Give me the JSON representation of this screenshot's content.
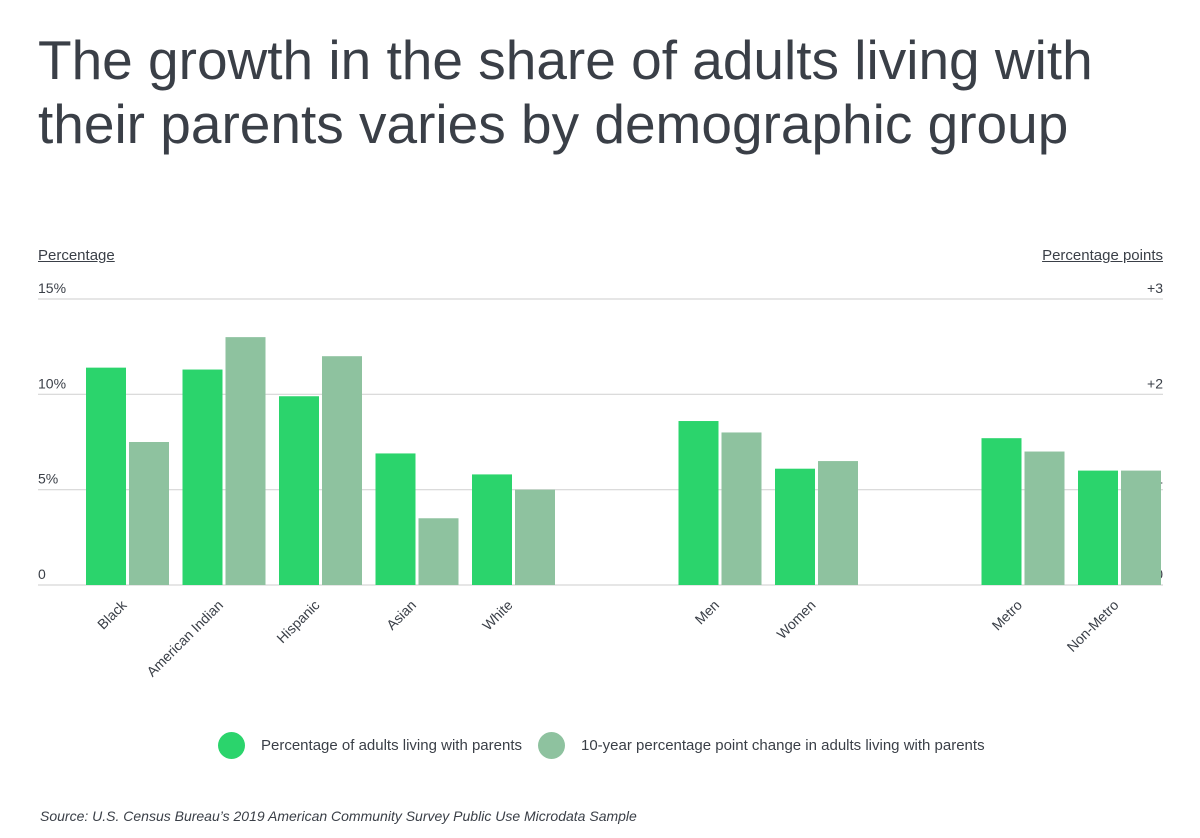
{
  "title": "The growth in the share of adults living with their parents varies by demographic group",
  "left_axis_title": "Percentage",
  "right_axis_title": "Percentage points",
  "source": "Source:  U.S. Census Bureau’s 2019 American Community Survey Public Use Microdata Sample",
  "colors": {
    "primary": "#2bd46c",
    "secondary": "#8ec29f",
    "grid": "#d6d6d6",
    "text": "#3a3f47"
  },
  "chart_data": {
    "type": "bar",
    "title": "The growth in the share of adults living with their parents varies by demographic group",
    "ylabel": "Percentage",
    "y2label": "Percentage points",
    "ylim": [
      0,
      15
    ],
    "y2lim": [
      0,
      3
    ],
    "yticks": [
      "0",
      "5%",
      "10%",
      "15%"
    ],
    "y2ticks": [
      "0",
      "+1",
      "+2",
      "+3"
    ],
    "grid": true,
    "legend_position": "bottom",
    "groups": [
      [
        "Black",
        "American Indian",
        "Hispanic",
        "Asian",
        "White"
      ],
      [
        "Men",
        "Women"
      ],
      [
        "Metro",
        "Non-Metro"
      ]
    ],
    "categories": [
      "Black",
      "American Indian",
      "Hispanic",
      "Asian",
      "White",
      "Men",
      "Women",
      "Metro",
      "Non-Metro"
    ],
    "series": [
      {
        "name": "Percentage of adults living with parents",
        "axis": "left",
        "values": [
          11.4,
          11.3,
          9.9,
          6.9,
          5.8,
          8.6,
          6.1,
          7.7,
          6.0
        ]
      },
      {
        "name": "10-year percentage point change in adults living with parents",
        "axis": "right",
        "values": [
          1.5,
          2.6,
          2.4,
          0.7,
          1.0,
          1.6,
          1.3,
          1.4,
          1.2
        ]
      }
    ]
  }
}
